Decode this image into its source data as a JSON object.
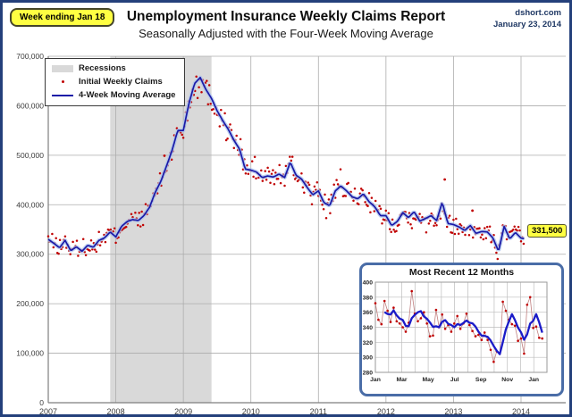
{
  "page": {
    "week_badge": "Week ending Jan 18",
    "title": "Unemployment Insurance Weekly Claims Report",
    "subtitle": "Seasonally Adjusted with the Four-Week Moving Average",
    "source_site": "dshort.com",
    "source_date": "January 23, 2014",
    "latest_value_label": "331,500"
  },
  "legend": {
    "items": [
      {
        "label": "Recessions",
        "marker": "gray-band-swatch"
      },
      {
        "label": "Initial Weekly Claims",
        "marker": "red-dot"
      },
      {
        "label": "4-Week Moving Average",
        "marker": "navy-line"
      }
    ]
  },
  "colors": {
    "page_border": "#24407B",
    "badge_bg": "#FFFF42",
    "callout_bg": "#FFFF42",
    "recession_band": "#D9D9D9",
    "gridline": "#ADADAD",
    "axis": "#7F7F7F",
    "claims_dot": "#C00000",
    "ma_line": "#1A1AA8",
    "ma_halo": "#A9C2EC",
    "source_text": "#1F3864",
    "inset_border": "#4A6DA7",
    "inset_raw_line": "#C08080",
    "inset_ma_line": "#1B1BC8"
  },
  "chart_data": [
    {
      "id": "main",
      "type": "line+scatter",
      "title": "Unemployment Insurance Weekly Claims Report",
      "subtitle": "Seasonally Adjusted with the Four-Week Moving Average",
      "grid": true,
      "legend_position": "top-left",
      "x_tick_labels": [
        "2007",
        "2008",
        "2009",
        "2010",
        "2011",
        "2012",
        "2013",
        "2014"
      ],
      "y_tick_labels": [
        "0",
        "100,000",
        "200,000",
        "300,000",
        "400,000",
        "500,000",
        "600,000",
        "700,000"
      ],
      "ylim_thousands": [
        0,
        700
      ],
      "recession_band_years": [
        2007.917,
        2009.417
      ],
      "series": [
        {
          "name": "4-Week Moving Average",
          "kind": "line",
          "monthly_start_year": 2007,
          "values_thousands": [
            330,
            322,
            313,
            328,
            307,
            315,
            306,
            318,
            314,
            328,
            333,
            345,
            335,
            356,
            366,
            370,
            368,
            378,
            395,
            425,
            447,
            478,
            510,
            550,
            550,
            605,
            645,
            657,
            633,
            615,
            590,
            570,
            552,
            530,
            512,
            472,
            470,
            466,
            455,
            458,
            456,
            462,
            455,
            486,
            460,
            452,
            435,
            420,
            428,
            404,
            398,
            428,
            438,
            428,
            416,
            412,
            422,
            406,
            396,
            378,
            378,
            358,
            366,
            384,
            374,
            386,
            367,
            372,
            378,
            368,
            405,
            362,
            360,
            355,
            348,
            358,
            342,
            346,
            345,
            333,
            306,
            356,
            331,
            344,
            332.5
          ],
          "final_point": {
            "year": 2014.046,
            "value_thousands": 331.5
          }
        },
        {
          "name": "Initial Weekly Claims",
          "kind": "scatter",
          "derivation": "ma_plus_jitter",
          "jitter_base": 8,
          "jitter_scale": 0.028,
          "seed": 13,
          "outliers": [
            {
              "year": 2008.72,
              "value_thousands": 499
            },
            {
              "year": 2012.87,
              "value_thousands": 451
            },
            {
              "year": 2013.28,
              "value_thousands": 388
            }
          ]
        }
      ],
      "callout": {
        "text": "331,500",
        "year": 2014.046,
        "value_thousands": 331.5
      }
    },
    {
      "id": "inset",
      "type": "line+scatter",
      "title": "Most Recent 12 Months",
      "grid": true,
      "x_tick_labels": [
        "Jan",
        "Mar",
        "May",
        "Jul",
        "Sep",
        "Nov",
        "Jan"
      ],
      "months_shown": 13,
      "y_ticks_thousands": [
        280,
        300,
        320,
        340,
        360,
        380,
        400
      ],
      "ylim_thousands": [
        280,
        400
      ],
      "moving_average_weeks": 4,
      "weekly_initial_claims_thousands": [
        372,
        350,
        344,
        375,
        362,
        347,
        366,
        348,
        345,
        340,
        334,
        346,
        388,
        358,
        348,
        352,
        360,
        345,
        328,
        329,
        363,
        340,
        357,
        338,
        343,
        334,
        345,
        355,
        338,
        345,
        358,
        343,
        335,
        328,
        330,
        323,
        333,
        323,
        310,
        294,
        308,
        305,
        374,
        362,
        350,
        344,
        342,
        322,
        325,
        305,
        370,
        380,
        339,
        341,
        326,
        325
      ]
    }
  ]
}
